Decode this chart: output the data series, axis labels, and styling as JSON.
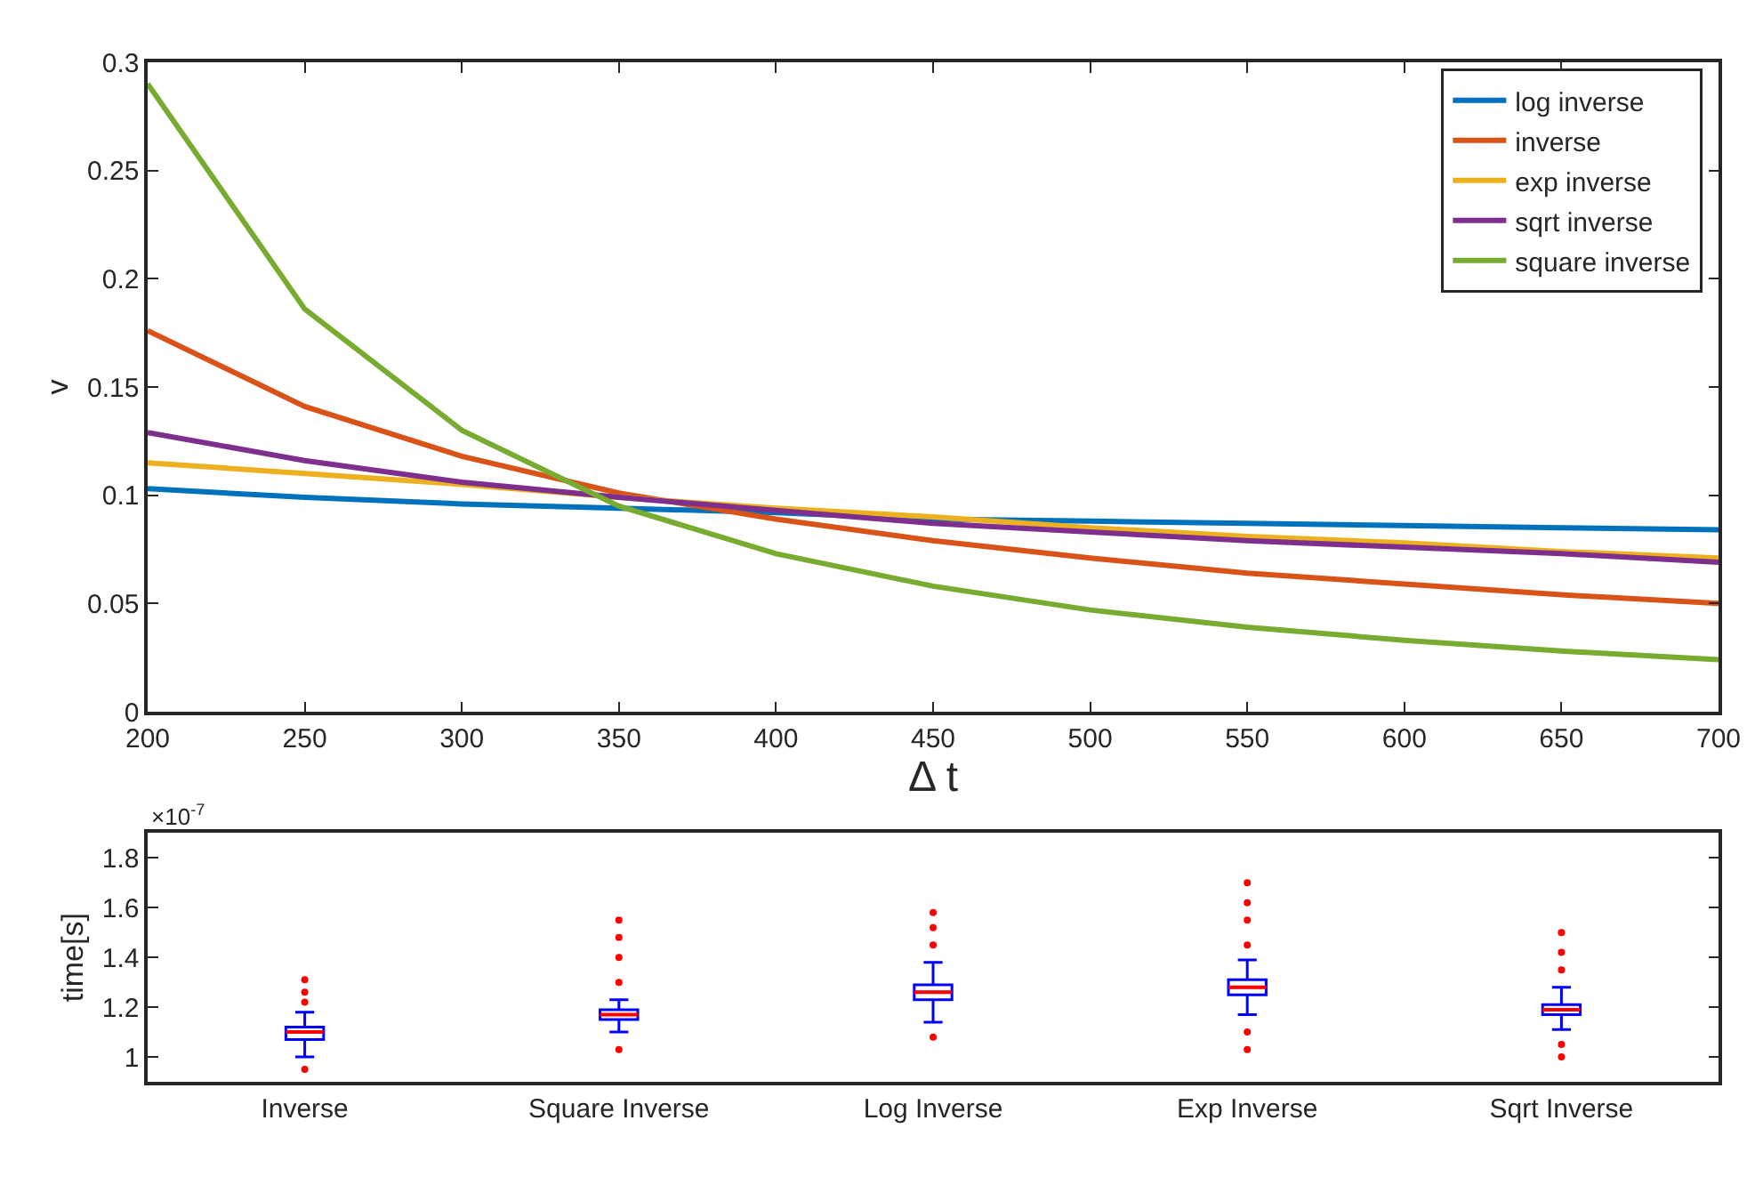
{
  "chart_data": [
    {
      "type": "line",
      "xlabel": "Δ t",
      "ylabel": "v",
      "x": [
        200,
        250,
        300,
        350,
        400,
        450,
        500,
        550,
        600,
        650,
        700
      ],
      "xlim": [
        200,
        700
      ],
      "xticks": [
        200,
        250,
        300,
        350,
        400,
        450,
        500,
        550,
        600,
        650,
        700
      ],
      "ylim": [
        0,
        0.3
      ],
      "yticks": [
        0,
        0.05,
        0.1,
        0.15,
        0.2,
        0.25,
        0.3
      ],
      "legend": "top right",
      "marker": "none",
      "line_style": "solid",
      "series": [
        {
          "name": "log inverse",
          "color": "#0072bd",
          "values": [
            0.103,
            0.099,
            0.096,
            0.094,
            0.092,
            0.089,
            0.088,
            0.087,
            0.086,
            0.085,
            0.084
          ]
        },
        {
          "name": "inverse",
          "color": "#d95319",
          "values": [
            0.176,
            0.141,
            0.118,
            0.101,
            0.089,
            0.079,
            0.071,
            0.064,
            0.059,
            0.054,
            0.05
          ]
        },
        {
          "name": "exp inverse",
          "color": "#edb120",
          "values": [
            0.115,
            0.11,
            0.105,
            0.099,
            0.094,
            0.09,
            0.085,
            0.081,
            0.078,
            0.074,
            0.071
          ]
        },
        {
          "name": "sqrt inverse",
          "color": "#7e2f8e",
          "values": [
            0.129,
            0.116,
            0.106,
            0.099,
            0.093,
            0.087,
            0.083,
            0.079,
            0.076,
            0.073,
            0.069
          ]
        },
        {
          "name": "square inverse",
          "color": "#77ac30",
          "values": [
            0.29,
            0.186,
            0.13,
            0.095,
            0.073,
            0.058,
            0.047,
            0.039,
            0.033,
            0.028,
            0.024
          ]
        }
      ]
    },
    {
      "type": "box",
      "ylabel": "time[s]",
      "annotations": [
        "×10$^{-7}$"
      ],
      "categories": [
        "Inverse",
        "Square Inverse",
        "Log Inverse",
        "Exp Inverse",
        "Sqrt Inverse"
      ],
      "ylim": [
        0.9,
        1.9
      ],
      "yticks": [
        1,
        1.2,
        1.4,
        1.6,
        1.8
      ],
      "legend": false,
      "series": [
        {
          "color": "#0000ff",
          "boxes": [
            {
              "low": 1.0,
              "q1": 1.07,
              "median": 1.1,
              "q3": 1.12,
              "high": 1.18,
              "outliers": [
                0.95,
                1.22,
                1.26,
                1.31
              ]
            },
            {
              "low": 1.1,
              "q1": 1.15,
              "median": 1.17,
              "q3": 1.19,
              "high": 1.23,
              "outliers": [
                1.03,
                1.3,
                1.4,
                1.48,
                1.55
              ]
            },
            {
              "low": 1.14,
              "q1": 1.23,
              "median": 1.26,
              "q3": 1.29,
              "high": 1.38,
              "outliers": [
                1.08,
                1.45,
                1.52,
                1.58
              ]
            },
            {
              "low": 1.17,
              "q1": 1.25,
              "median": 1.28,
              "q3": 1.31,
              "high": 1.39,
              "outliers": [
                1.03,
                1.1,
                1.45,
                1.55,
                1.62,
                1.7
              ]
            },
            {
              "low": 1.11,
              "q1": 1.17,
              "median": 1.19,
              "q3": 1.21,
              "high": 1.28,
              "outliers": [
                1.0,
                1.05,
                1.35,
                1.42,
                1.5
              ]
            }
          ]
        }
      ]
    }
  ]
}
